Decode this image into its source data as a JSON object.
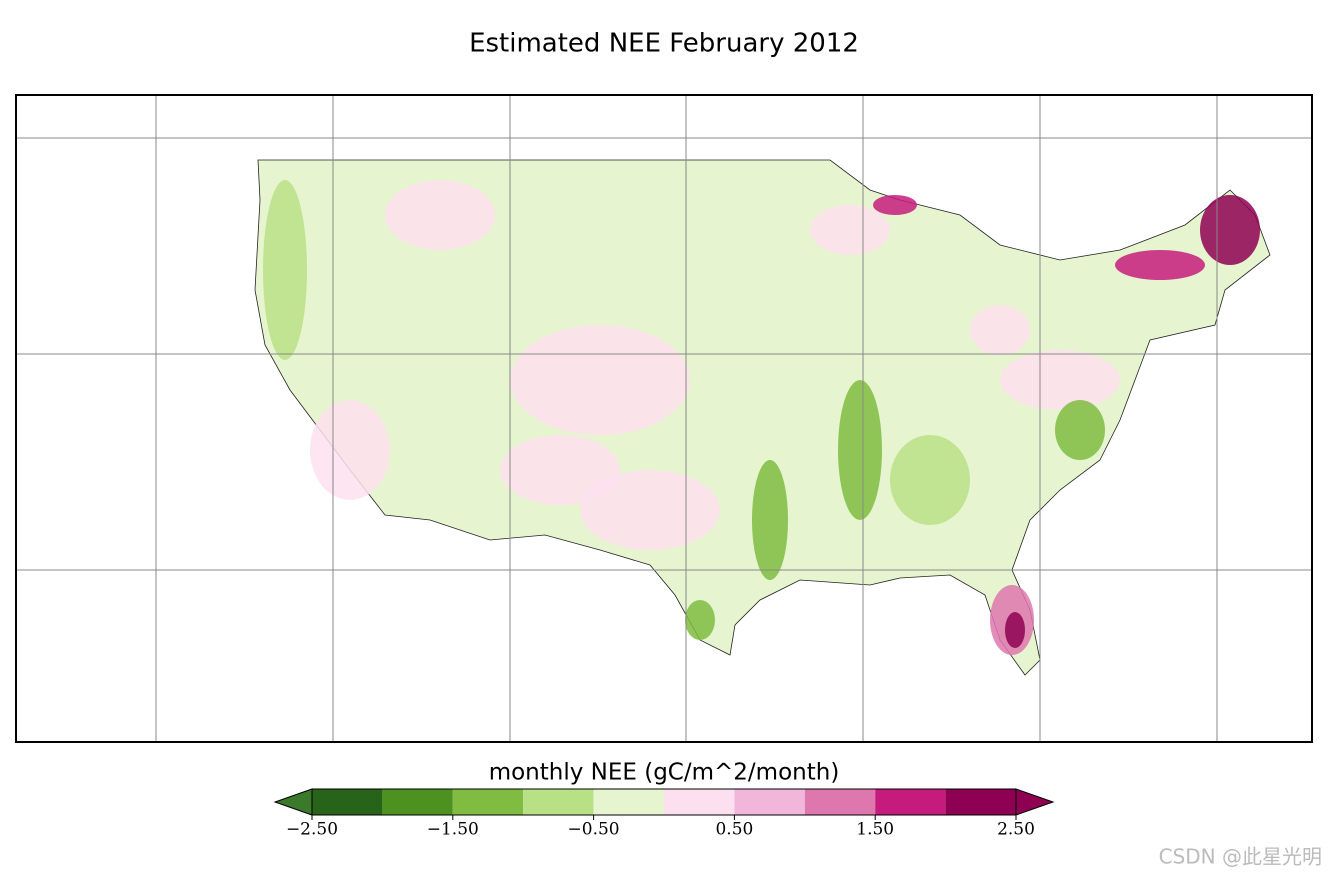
{
  "title": "Estimated NEE February 2012",
  "colorbar": {
    "label": "monthly NEE (gC/m^2/month)",
    "bounds": [
      -2.5,
      -2,
      -1.5,
      -1,
      -0.5,
      0,
      0.5,
      1,
      1.5,
      2,
      2.5
    ],
    "colors": [
      "#276419",
      "#4d9221",
      "#7fbc41",
      "#b8e186",
      "#e6f5d0",
      "#fde0ef",
      "#f1b6da",
      "#de77ae",
      "#c51b7d",
      "#8e0152"
    ],
    "extend_colors": [
      "#3a7a2a",
      "#8e0152"
    ],
    "ticks": [
      {
        "value": -2.5,
        "label": "−2.50"
      },
      {
        "value": -1.5,
        "label": "−1.50"
      },
      {
        "value": -0.5,
        "label": "−0.50"
      },
      {
        "value": 0.5,
        "label": "0.50"
      },
      {
        "value": 1.5,
        "label": "1.50"
      },
      {
        "value": 2.5,
        "label": "2.50"
      }
    ]
  },
  "watermark": "CSDN @此星光明"
}
